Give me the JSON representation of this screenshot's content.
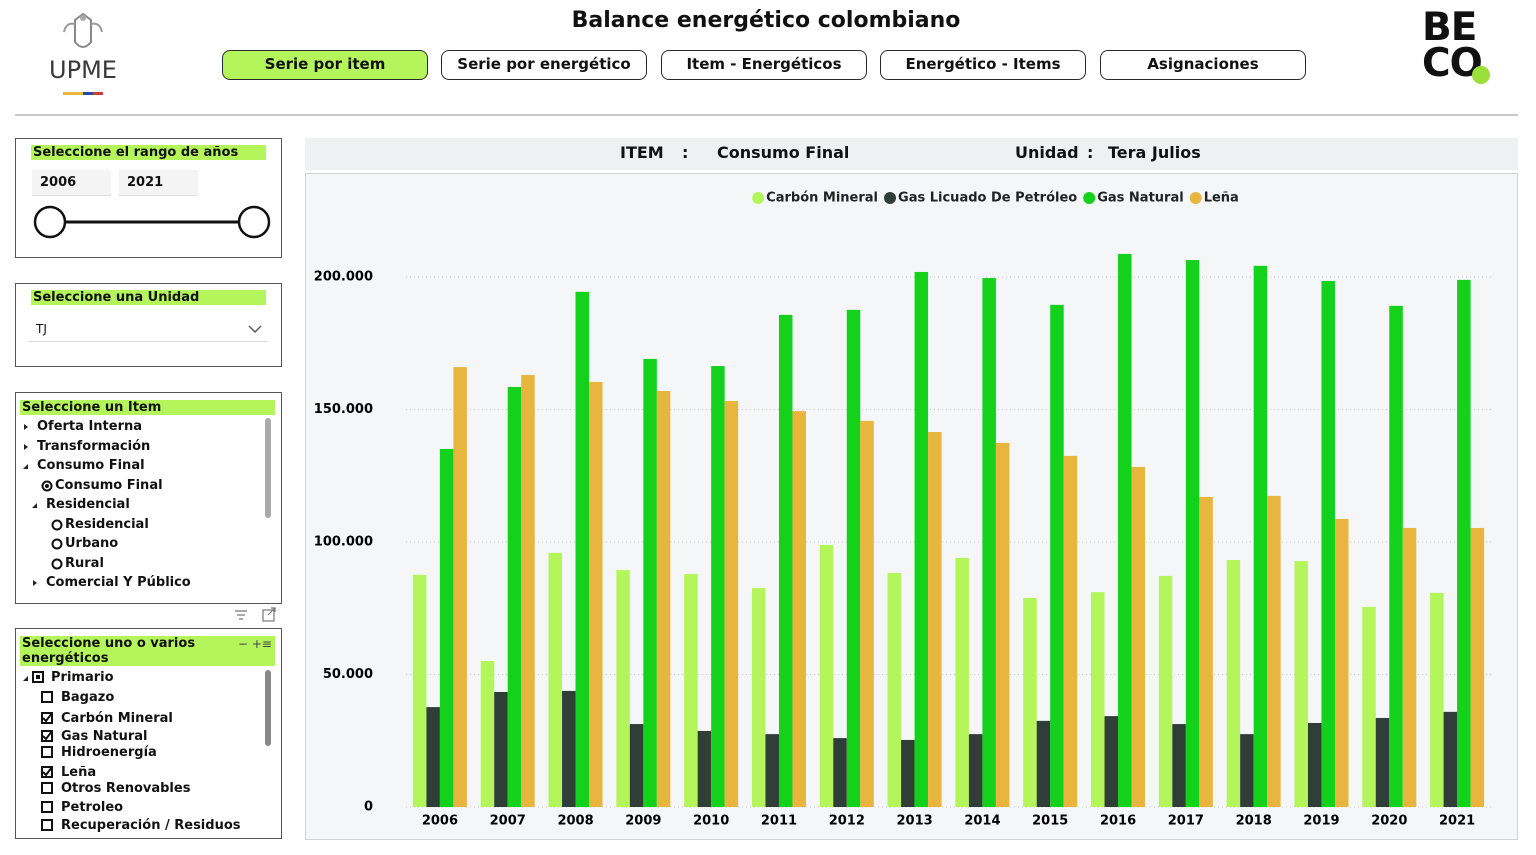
{
  "header": {
    "title": "Balance energético colombiano",
    "logo_left": "UPME",
    "logo_right": [
      "BE",
      "CO"
    ]
  },
  "nav": [
    {
      "label": "Serie por item",
      "active": true
    },
    {
      "label": "Serie por energético",
      "active": false
    },
    {
      "label": "Item - Energéticos",
      "active": false
    },
    {
      "label": "Energético - Items",
      "active": false
    },
    {
      "label": "Asignaciones",
      "active": false
    }
  ],
  "filters": {
    "years": {
      "title": "Seleccione el rango de años",
      "from": "2006",
      "to": "2021"
    },
    "unit": {
      "title": "Seleccione una Unidad",
      "value": "TJ"
    },
    "item": {
      "title": "Seleccione un Item",
      "options": [
        {
          "label": "Oferta Interna",
          "level": 0,
          "node": "closed"
        },
        {
          "label": "Transformación",
          "level": 0,
          "node": "closed"
        },
        {
          "label": "Consumo Final",
          "level": 0,
          "node": "open"
        },
        {
          "label": "Consumo Final",
          "level": 1,
          "node": "radio",
          "selected": true
        },
        {
          "label": "Residencial",
          "level": 1,
          "node": "open"
        },
        {
          "label": "Residencial",
          "level": 2,
          "node": "radio",
          "selected": false
        },
        {
          "label": "Urbano",
          "level": 2,
          "node": "radio",
          "selected": false
        },
        {
          "label": "Rural",
          "level": 2,
          "node": "radio",
          "selected": false
        },
        {
          "label": "Comercial Y Público",
          "level": 1,
          "node": "closed"
        }
      ]
    },
    "energy": {
      "title": "Seleccione uno o varios energéticos",
      "options": [
        {
          "label": "Primario",
          "level": 0,
          "checked": "partial"
        },
        {
          "label": "Bagazo",
          "level": 1,
          "checked": false
        },
        {
          "label": "Carbón Mineral",
          "level": 1,
          "checked": true
        },
        {
          "label": "Gas Natural",
          "level": 1,
          "checked": true
        },
        {
          "label": "Hidroenergía",
          "level": 1,
          "checked": false
        },
        {
          "label": "Leña",
          "level": 1,
          "checked": true
        },
        {
          "label": "Otros Renovables",
          "level": 1,
          "checked": false
        },
        {
          "label": "Petroleo",
          "level": 1,
          "checked": false
        },
        {
          "label": "Recuperación / Residuos",
          "level": 1,
          "checked": false
        }
      ]
    }
  },
  "chart_header": {
    "item_label": "ITEM",
    "separator": ":",
    "item_value": "Consumo Final",
    "unit_label": "Unidad",
    "unit_value": "Tera Julios"
  },
  "chart_data": {
    "type": "bar",
    "categories": [
      "2006",
      "2007",
      "2008",
      "2009",
      "2010",
      "2011",
      "2012",
      "2013",
      "2014",
      "2015",
      "2016",
      "2017",
      "2018",
      "2019",
      "2020",
      "2021"
    ],
    "series": [
      {
        "name": "Carbón Mineral",
        "color": "#b5f55c",
        "values": [
          87600,
          55100,
          95900,
          89400,
          87900,
          82600,
          98900,
          88300,
          94000,
          78900,
          81100,
          87200,
          93200,
          92800,
          75500,
          80800
        ]
      },
      {
        "name": "Gas Licuado De Petróleo",
        "color": "#2f3f38",
        "values": [
          37700,
          43400,
          43800,
          31300,
          28700,
          27500,
          26000,
          25300,
          27500,
          32500,
          34300,
          31300,
          27500,
          31700,
          33600,
          35900
        ]
      },
      {
        "name": "Gas Natural",
        "color": "#14d11c",
        "values": [
          135100,
          158500,
          194400,
          169100,
          166400,
          185700,
          187600,
          201900,
          199600,
          189500,
          208700,
          206400,
          204200,
          198500,
          189100,
          198900
        ]
      },
      {
        "name": "Leña",
        "color": "#e8b53f",
        "values": [
          166000,
          163000,
          160400,
          157000,
          153200,
          149400,
          145700,
          141500,
          137400,
          132500,
          128300,
          117000,
          117400,
          108700,
          105300,
          105300
        ]
      }
    ],
    "ylim": [
      0,
      220000
    ],
    "yticks": [
      0,
      {
        "value": 50000,
        "label": "50.000"
      },
      {
        "value": 100000,
        "label": "100.000"
      },
      {
        "value": 150000,
        "label": "150.000"
      },
      {
        "value": 200000,
        "label": "200.000"
      }
    ],
    "grid": true,
    "legend": "top"
  }
}
